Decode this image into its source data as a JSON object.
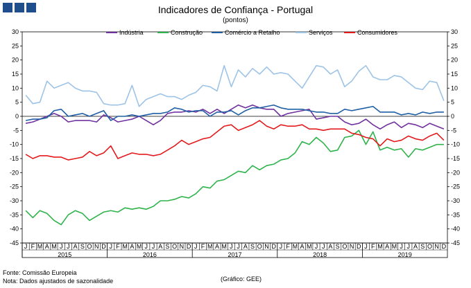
{
  "header": {
    "title": "Indicadores de Confiança - Portugal",
    "subtitle": "(pontos)"
  },
  "footer": {
    "source": "Fonte: Comissão Europeia",
    "note": "Nota: Dados ajustados de sazonalidade",
    "credit": "(Gráfico: GEE)"
  },
  "chart_data": {
    "type": "line",
    "title": "Indicadores de Confiança - Portugal",
    "ylabel": "pontos",
    "ylim": [
      -45,
      30
    ],
    "yticks": [
      30,
      25,
      20,
      15,
      10,
      5,
      0,
      -5,
      -10,
      -15,
      -20,
      -25,
      -30,
      -35,
      -40,
      -45
    ],
    "month_labels": [
      "J",
      "F",
      "M",
      "A",
      "M",
      "J",
      "J",
      "A",
      "S",
      "O",
      "N",
      "D"
    ],
    "years": [
      "2015",
      "2016",
      "2017",
      "2018",
      "2019"
    ],
    "legend_position": "top",
    "series": [
      {
        "name": "Indústria",
        "color": "#7030a0",
        "values": [
          -2.5,
          -2,
          -1,
          0,
          1,
          0,
          -2,
          -1.5,
          -1.5,
          -1.5,
          -2,
          0.5,
          -0.5,
          -2,
          -1.5,
          -1,
          0,
          -1.5,
          -3,
          -1.5,
          1,
          1.5,
          1.5,
          2,
          1.5,
          2.5,
          1,
          2.5,
          1,
          2.5,
          4,
          3,
          4,
          3,
          2.5,
          2.5,
          0,
          1,
          1.5,
          2,
          2.5,
          -1,
          -0.5,
          0,
          0,
          -2,
          -3,
          -2.5,
          -1,
          -3,
          -4.5,
          -3,
          -2,
          -4,
          -2.5,
          -3,
          -4,
          -2.5,
          -3.5,
          -4.5
        ]
      },
      {
        "name": "Construção",
        "color": "#2db34a",
        "values": [
          -33.5,
          -36,
          -33.5,
          -34.5,
          -37,
          -38.5,
          -35,
          -33.5,
          -34.5,
          -37,
          -35.5,
          -34,
          -33.5,
          -34,
          -32.5,
          -33,
          -32.5,
          -33,
          -32,
          -30,
          -30,
          -29.5,
          -28.5,
          -29,
          -27.5,
          -25,
          -25.5,
          -23,
          -22.5,
          -21,
          -19.5,
          -20,
          -17.5,
          -19,
          -17.5,
          -17,
          -15.5,
          -15,
          -13,
          -9,
          -10,
          -7.5,
          -9.5,
          -12.5,
          -12,
          -7.5,
          -7,
          -5,
          -10,
          -5.5,
          -12,
          -11,
          -12,
          -11.5,
          -14.5,
          -11.5,
          -12,
          -11,
          -10,
          -10
        ]
      },
      {
        "name": "Comércio a Retalho",
        "color": "#1f5fa6",
        "values": [
          -1.5,
          -1,
          -1,
          -0.5,
          2,
          2.5,
          0,
          0.5,
          1,
          0,
          1,
          2,
          -1.5,
          0,
          0,
          0.5,
          0,
          0.5,
          1,
          1,
          1.5,
          3,
          2.5,
          1.5,
          2,
          2,
          0,
          1.5,
          1.5,
          2,
          0.5,
          2,
          3,
          3,
          3.5,
          4,
          3,
          2.5,
          2.5,
          2.5,
          2,
          1.5,
          1.5,
          1,
          1,
          2.5,
          2,
          2.5,
          3,
          3.5,
          1.5,
          1.5,
          1.5,
          0.5,
          1,
          0.5,
          1.5,
          1,
          1.5,
          1.5
        ]
      },
      {
        "name": "Serviços",
        "color": "#9dc3e6",
        "values": [
          7.5,
          4.5,
          5,
          12.5,
          10,
          11,
          12,
          10,
          9,
          9,
          8.5,
          4.5,
          4,
          4,
          4.5,
          11,
          3.5,
          6,
          7,
          8,
          7,
          7,
          6,
          7.5,
          8.5,
          11,
          10.5,
          9,
          18,
          10.5,
          16.5,
          14,
          17,
          15,
          17.5,
          15,
          15.5,
          15,
          12.5,
          10,
          14,
          18,
          17.5,
          15,
          16.5,
          10.5,
          12.5,
          16,
          18,
          14,
          13,
          13,
          14.5,
          14,
          12,
          10,
          9.5,
          12.5,
          12,
          5.5
        ]
      },
      {
        "name": "Consumidores",
        "color": "#e31a1c",
        "values": [
          -13.5,
          -15,
          -14,
          -14,
          -14.5,
          -14.5,
          -15.5,
          -15,
          -14.5,
          -12.5,
          -14,
          -13,
          -10.5,
          -15,
          -14,
          -13,
          -13.5,
          -13.5,
          -14,
          -13.5,
          -12,
          -10.5,
          -8.5,
          -10,
          -9,
          -8,
          -7.5,
          -5.5,
          -3.5,
          -3,
          -5,
          -4,
          -3,
          -1.5,
          -3.5,
          -4.5,
          -3,
          -3.5,
          -3.5,
          -3,
          -4.5,
          -4.5,
          -5,
          -4.5,
          -4.5,
          -4.5,
          -6,
          -6.5,
          -7.5,
          -8,
          -10.5,
          -8,
          -9,
          -8.5,
          -7,
          -8,
          -8.5,
          -7,
          -6,
          -8.5
        ]
      }
    ]
  }
}
